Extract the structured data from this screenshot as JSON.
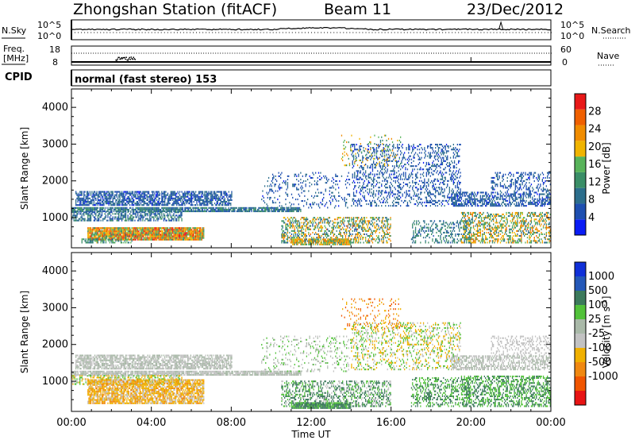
{
  "header": {
    "station": "Zhongshan Station (fitACF)",
    "beam": "Beam 11",
    "date": "23/Dec/2012"
  },
  "sky_panel": {
    "left_label": "N.Sky",
    "right_label": "N.Search",
    "left_ticks": [
      "10^5",
      "10^0"
    ],
    "right_ticks": [
      "10^5",
      "10^0"
    ]
  },
  "freq_panel": {
    "left_label_1": "Freq.",
    "left_label_2": "[MHz]",
    "left_ticks": [
      "18",
      "8"
    ],
    "right_ticks": [
      "60",
      "0"
    ],
    "right_label": "Nave"
  },
  "cpid_panel": {
    "label": "CPID",
    "mode": "normal (fast stereo) 153"
  },
  "colors": {
    "power_scale": [
      "#0a1cf5",
      "#1e4fb0",
      "#2c6e8c",
      "#3a8e67",
      "#58b35a",
      "#f0b400",
      "#f08c00",
      "#f06000",
      "#e81818"
    ],
    "velocity_scale": [
      "#1030d8",
      "#2458b8",
      "#3c7a5c",
      "#52c23a",
      "#a9b9a8",
      "#c2c2c2",
      "#f0b000",
      "#f08810",
      "#f05500",
      "#e81414"
    ]
  },
  "chart_data": [
    {
      "type": "heatmap",
      "name": "power",
      "xlabel": "",
      "ylabel": "Slant Range [km]",
      "ylim": [
        180,
        4500
      ],
      "xlim": [
        "00:00",
        "24:00"
      ],
      "y_ticks": [
        1000,
        2000,
        3000,
        4000
      ],
      "colorbar": {
        "label": "Power [dB]",
        "ticks": [
          4,
          8,
          12,
          16,
          20,
          24,
          28
        ],
        "range": [
          0,
          32
        ]
      },
      "regions": [
        {
          "t0": 0.2,
          "t1": 8.0,
          "r0": 1320,
          "r1": 1720,
          "density": 0.7,
          "vmin": 3,
          "vmax": 10
        },
        {
          "t0": 0.0,
          "t1": 11.5,
          "r0": 1150,
          "r1": 1260,
          "density": 0.85,
          "vmin": 5,
          "vmax": 13
        },
        {
          "t0": 0.0,
          "t1": 5.5,
          "r0": 900,
          "r1": 1130,
          "density": 0.55,
          "vmin": 4,
          "vmax": 13
        },
        {
          "t0": 0.8,
          "t1": 6.6,
          "r0": 380,
          "r1": 700,
          "density": 0.95,
          "vmin": 12,
          "vmax": 30
        },
        {
          "t0": 0.5,
          "t1": 3.0,
          "r0": 300,
          "r1": 420,
          "density": 0.5,
          "vmin": 8,
          "vmax": 18
        },
        {
          "t0": 10.5,
          "t1": 16.0,
          "r0": 300,
          "r1": 1000,
          "density": 0.45,
          "vmin": 6,
          "vmax": 26
        },
        {
          "t0": 11.0,
          "t1": 14.0,
          "r0": 250,
          "r1": 420,
          "density": 0.85,
          "vmin": 10,
          "vmax": 26
        },
        {
          "t0": 9.5,
          "t1": 14.0,
          "r0": 1250,
          "r1": 2200,
          "density": 0.15,
          "vmin": 3,
          "vmax": 10
        },
        {
          "t0": 14.0,
          "t1": 19.5,
          "r0": 1300,
          "r1": 3000,
          "density": 0.28,
          "vmin": 3,
          "vmax": 10
        },
        {
          "t0": 13.5,
          "t1": 16.5,
          "r0": 2400,
          "r1": 3250,
          "density": 0.12,
          "vmin": 10,
          "vmax": 24
        },
        {
          "t0": 19.0,
          "t1": 24.0,
          "r0": 1300,
          "r1": 1700,
          "density": 0.55,
          "vmin": 3,
          "vmax": 10
        },
        {
          "t0": 21.0,
          "t1": 24.0,
          "r0": 1700,
          "r1": 2200,
          "density": 0.3,
          "vmin": 3,
          "vmax": 9
        },
        {
          "t0": 19.5,
          "t1": 24.0,
          "r0": 300,
          "r1": 1150,
          "density": 0.45,
          "vmin": 8,
          "vmax": 26
        },
        {
          "t0": 17.0,
          "t1": 20.0,
          "r0": 300,
          "r1": 900,
          "density": 0.3,
          "vmin": 6,
          "vmax": 14
        }
      ]
    },
    {
      "type": "heatmap",
      "name": "velocity",
      "xlabel": "Time UT",
      "ylabel": "Slant Range [km]",
      "ylim": [
        180,
        4500
      ],
      "xlim": [
        "00:00",
        "24:00"
      ],
      "x_ticks": [
        "00:00",
        "04:00",
        "08:00",
        "12:00",
        "16:00",
        "20:00",
        "00:00"
      ],
      "y_ticks": [
        1000,
        2000,
        3000,
        4000
      ],
      "colorbar": {
        "label": "Velocity [m s-1]",
        "ticks": [
          1000,
          500,
          100,
          25,
          -25,
          -100,
          -500,
          -1000
        ]
      },
      "regions": [
        {
          "t0": 0.2,
          "t1": 8.0,
          "r0": 1320,
          "r1": 1720,
          "density": 0.7,
          "classes": [
            4,
            5
          ]
        },
        {
          "t0": 0.0,
          "t1": 11.5,
          "r0": 1150,
          "r1": 1260,
          "density": 0.85,
          "classes": [
            5,
            4
          ]
        },
        {
          "t0": 0.0,
          "t1": 5.5,
          "r0": 900,
          "r1": 1130,
          "density": 0.55,
          "classes": [
            5,
            3,
            6
          ]
        },
        {
          "t0": 0.8,
          "t1": 6.6,
          "r0": 380,
          "r1": 1050,
          "density": 0.8,
          "classes": [
            6,
            6,
            5,
            7
          ]
        },
        {
          "t0": 10.5,
          "t1": 16.0,
          "r0": 300,
          "r1": 1000,
          "density": 0.45,
          "classes": [
            2,
            2,
            3,
            5
          ]
        },
        {
          "t0": 11.0,
          "t1": 14.0,
          "r0": 250,
          "r1": 420,
          "density": 0.85,
          "classes": [
            2,
            2,
            3
          ]
        },
        {
          "t0": 9.5,
          "t1": 14.0,
          "r0": 1250,
          "r1": 2200,
          "density": 0.15,
          "classes": [
            5,
            4,
            3
          ]
        },
        {
          "t0": 14.0,
          "t1": 19.5,
          "r0": 1300,
          "r1": 2600,
          "density": 0.28,
          "classes": [
            3,
            5,
            6
          ]
        },
        {
          "t0": 13.5,
          "t1": 16.5,
          "r0": 2400,
          "r1": 3250,
          "density": 0.12,
          "classes": [
            6,
            7,
            8
          ]
        },
        {
          "t0": 19.0,
          "t1": 24.0,
          "r0": 1300,
          "r1": 1700,
          "density": 0.55,
          "classes": [
            5,
            4
          ]
        },
        {
          "t0": 21.0,
          "t1": 24.0,
          "r0": 1700,
          "r1": 2200,
          "density": 0.3,
          "classes": [
            5
          ]
        },
        {
          "t0": 19.5,
          "t1": 24.0,
          "r0": 300,
          "r1": 1150,
          "density": 0.45,
          "classes": [
            2,
            3
          ]
        },
        {
          "t0": 17.0,
          "t1": 20.0,
          "r0": 300,
          "r1": 1100,
          "density": 0.35,
          "classes": [
            2,
            3
          ]
        }
      ]
    }
  ],
  "time_axis_label": "Time UT"
}
